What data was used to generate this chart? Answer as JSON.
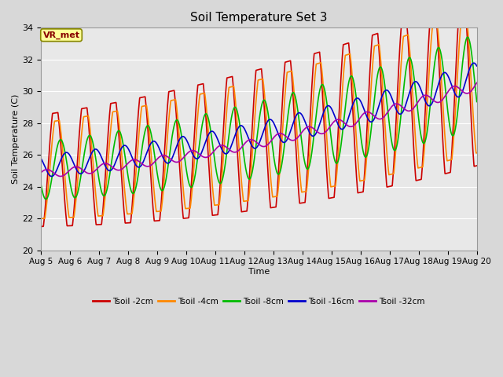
{
  "title": "Soil Temperature Set 3",
  "xlabel": "Time",
  "ylabel": "Soil Temperature (C)",
  "ylim": [
    20,
    34
  ],
  "xlim": [
    0,
    15
  ],
  "x_tick_labels": [
    "Aug 5",
    "Aug 6",
    "Aug 7",
    "Aug 8",
    "Aug 9",
    "Aug 10",
    "Aug 11",
    "Aug 12",
    "Aug 13",
    "Aug 14",
    "Aug 15",
    "Aug 16",
    "Aug 17",
    "Aug 18",
    "Aug 19",
    "Aug 20"
  ],
  "bg_color": "#d8d8d8",
  "plot_bg_color": "#e8e8e8",
  "series_colors": [
    "#cc0000",
    "#ff8800",
    "#00bb00",
    "#0000cc",
    "#aa00aa"
  ],
  "series_labels": [
    "Tsoil -2cm",
    "Tsoil -4cm",
    "Tsoil -8cm",
    "Tsoil -16cm",
    "Tsoil -32cm"
  ],
  "annotation_text": "VR_met",
  "annotation_bg": "#ffff99",
  "annotation_border": "#888800",
  "annotation_text_color": "#880000"
}
